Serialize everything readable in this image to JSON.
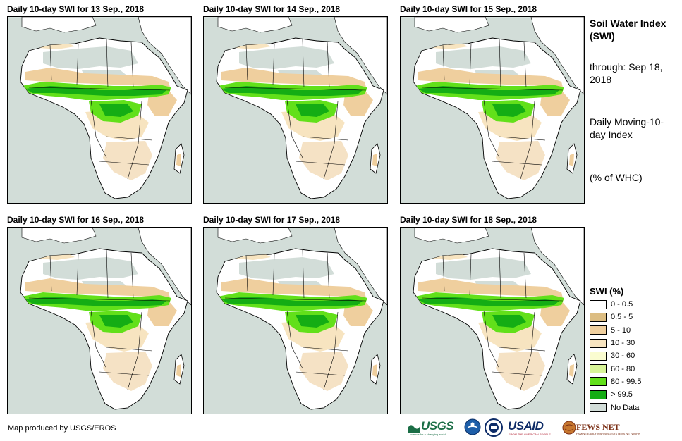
{
  "panels": [
    {
      "title": "Daily 10-day SWI for 13 Sep., 2018"
    },
    {
      "title": "Daily 10-day SWI for 14 Sep., 2018"
    },
    {
      "title": "Daily 10-day SWI for 15 Sep., 2018"
    },
    {
      "title": "Daily 10-day SWI for 16 Sep., 2018"
    },
    {
      "title": "Daily 10-day SWI for 17 Sep., 2018"
    },
    {
      "title": "Daily 10-day SWI for 18 Sep., 2018"
    }
  ],
  "sidebar": {
    "title": "Soil Water Index (SWI)",
    "through": "through: Sep 18, 2018",
    "description": "Daily Moving-10-day Index",
    "unit": "(% of WHC)"
  },
  "legend": {
    "title": "SWI (%)",
    "items": [
      {
        "label": "0 - 0.5",
        "color": "#ffffff"
      },
      {
        "label": "0.5 - 5",
        "color": "#dcbd82"
      },
      {
        "label": "5 - 10",
        "color": "#efcf9e"
      },
      {
        "label": "10 - 30",
        "color": "#f7e4c0"
      },
      {
        "label": "30 - 60",
        "color": "#fafcd0"
      },
      {
        "label": "60 - 80",
        "color": "#d8f598"
      },
      {
        "label": "80 - 99.5",
        "color": "#62e01a"
      },
      {
        "label": "> 99.5",
        "color": "#14ad14"
      },
      {
        "label": "No Data",
        "color": "#d2ddd8"
      }
    ]
  },
  "credit": "Map produced by USGS/EROS",
  "logos": {
    "usgs": "USGS",
    "usgs_tagline": "science for a changing world",
    "usaid": "USAID",
    "usaid_tagline": "FROM THE AMERICAN PEOPLE",
    "fews": "FEWS NET",
    "fews_tagline": "FAMINE EARLY WARNING SYSTEMS NETWORK"
  },
  "colors": {
    "nodata_bg": "#d2ddd8",
    "land": "#ffffff",
    "dry": "#efcf9e",
    "light_tan": "#f7e4c0",
    "wet": "#62e01a",
    "saturated": "#14ad14"
  }
}
